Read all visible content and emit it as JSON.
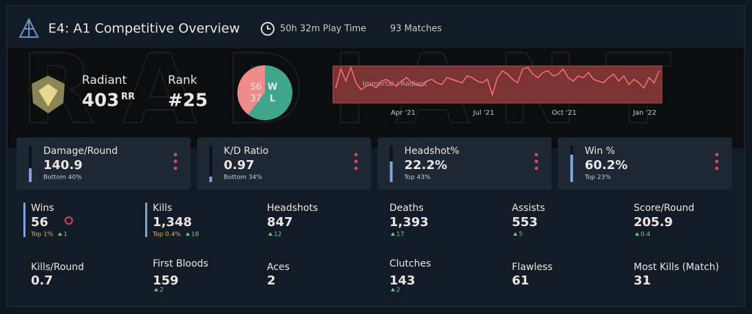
{
  "header": {
    "title": "E4: A1 Competitive Overview",
    "play_time": "50h 32m Play Time",
    "matches": "93 Matches"
  },
  "watermark": "RADIANT",
  "rank": {
    "tier": "Radiant",
    "rating": "403",
    "rating_unit": "RR",
    "rank_label": "Rank",
    "rank": "#25"
  },
  "record": {
    "wins": 56,
    "losses": 37,
    "win_label": "W",
    "loss_label": "L",
    "win_color": "#3fa58b",
    "loss_color": "#ef8b8b"
  },
  "rating_chart": {
    "label": "Immortal / Radiant",
    "x_labels": [
      "Apr '21",
      "Jul '21",
      "Oct '21",
      "Jan '22"
    ],
    "ylim": [
      0,
      100
    ],
    "values": [
      40,
      95,
      60,
      100,
      55,
      35,
      45,
      50,
      40,
      60,
      65,
      55,
      45,
      60,
      70,
      55,
      50,
      45,
      60,
      65,
      55,
      50,
      70,
      65,
      60,
      55,
      75,
      70,
      60,
      55,
      65,
      20,
      70,
      90,
      80,
      65,
      55,
      95,
      100,
      80,
      70,
      85,
      90,
      75,
      80,
      95,
      70,
      60,
      75,
      70,
      85,
      65,
      60,
      55,
      70,
      80,
      60,
      75,
      50,
      65,
      55,
      40,
      70,
      55,
      90
    ]
  },
  "cards": [
    {
      "label": "Damage/Round",
      "value": "140.9",
      "sub": "Bottom 40%"
    },
    {
      "label": "K/D Ratio",
      "value": "0.97",
      "sub": "Bottom 34%"
    },
    {
      "label": "Headshot%",
      "value": "22.2%",
      "sub": "Top 43%"
    },
    {
      "label": "Win %",
      "value": "60.2%",
      "sub": "Top 23%"
    }
  ],
  "stats": [
    {
      "label": "Wins",
      "value": "56",
      "top": "Top 1%",
      "delta": "1"
    },
    {
      "label": "Kills",
      "value": "1,348",
      "top": "Top 0.4%",
      "delta": "18"
    },
    {
      "label": "Headshots",
      "value": "847",
      "delta": "12"
    },
    {
      "label": "Deaths",
      "value": "1,393",
      "delta": "17"
    },
    {
      "label": "Assists",
      "value": "553",
      "delta": "5"
    },
    {
      "label": "Score/Round",
      "value": "205.9",
      "delta": "0.4"
    },
    {
      "label": "Kills/Round",
      "value": "0.7"
    },
    {
      "label": "First Bloods",
      "value": "159",
      "delta": "2"
    },
    {
      "label": "Aces",
      "value": "2"
    },
    {
      "label": "Clutches",
      "value": "143",
      "delta": "2"
    },
    {
      "label": "Flawless",
      "value": "61"
    },
    {
      "label": "Most Kills (Match)",
      "value": "31"
    }
  ]
}
